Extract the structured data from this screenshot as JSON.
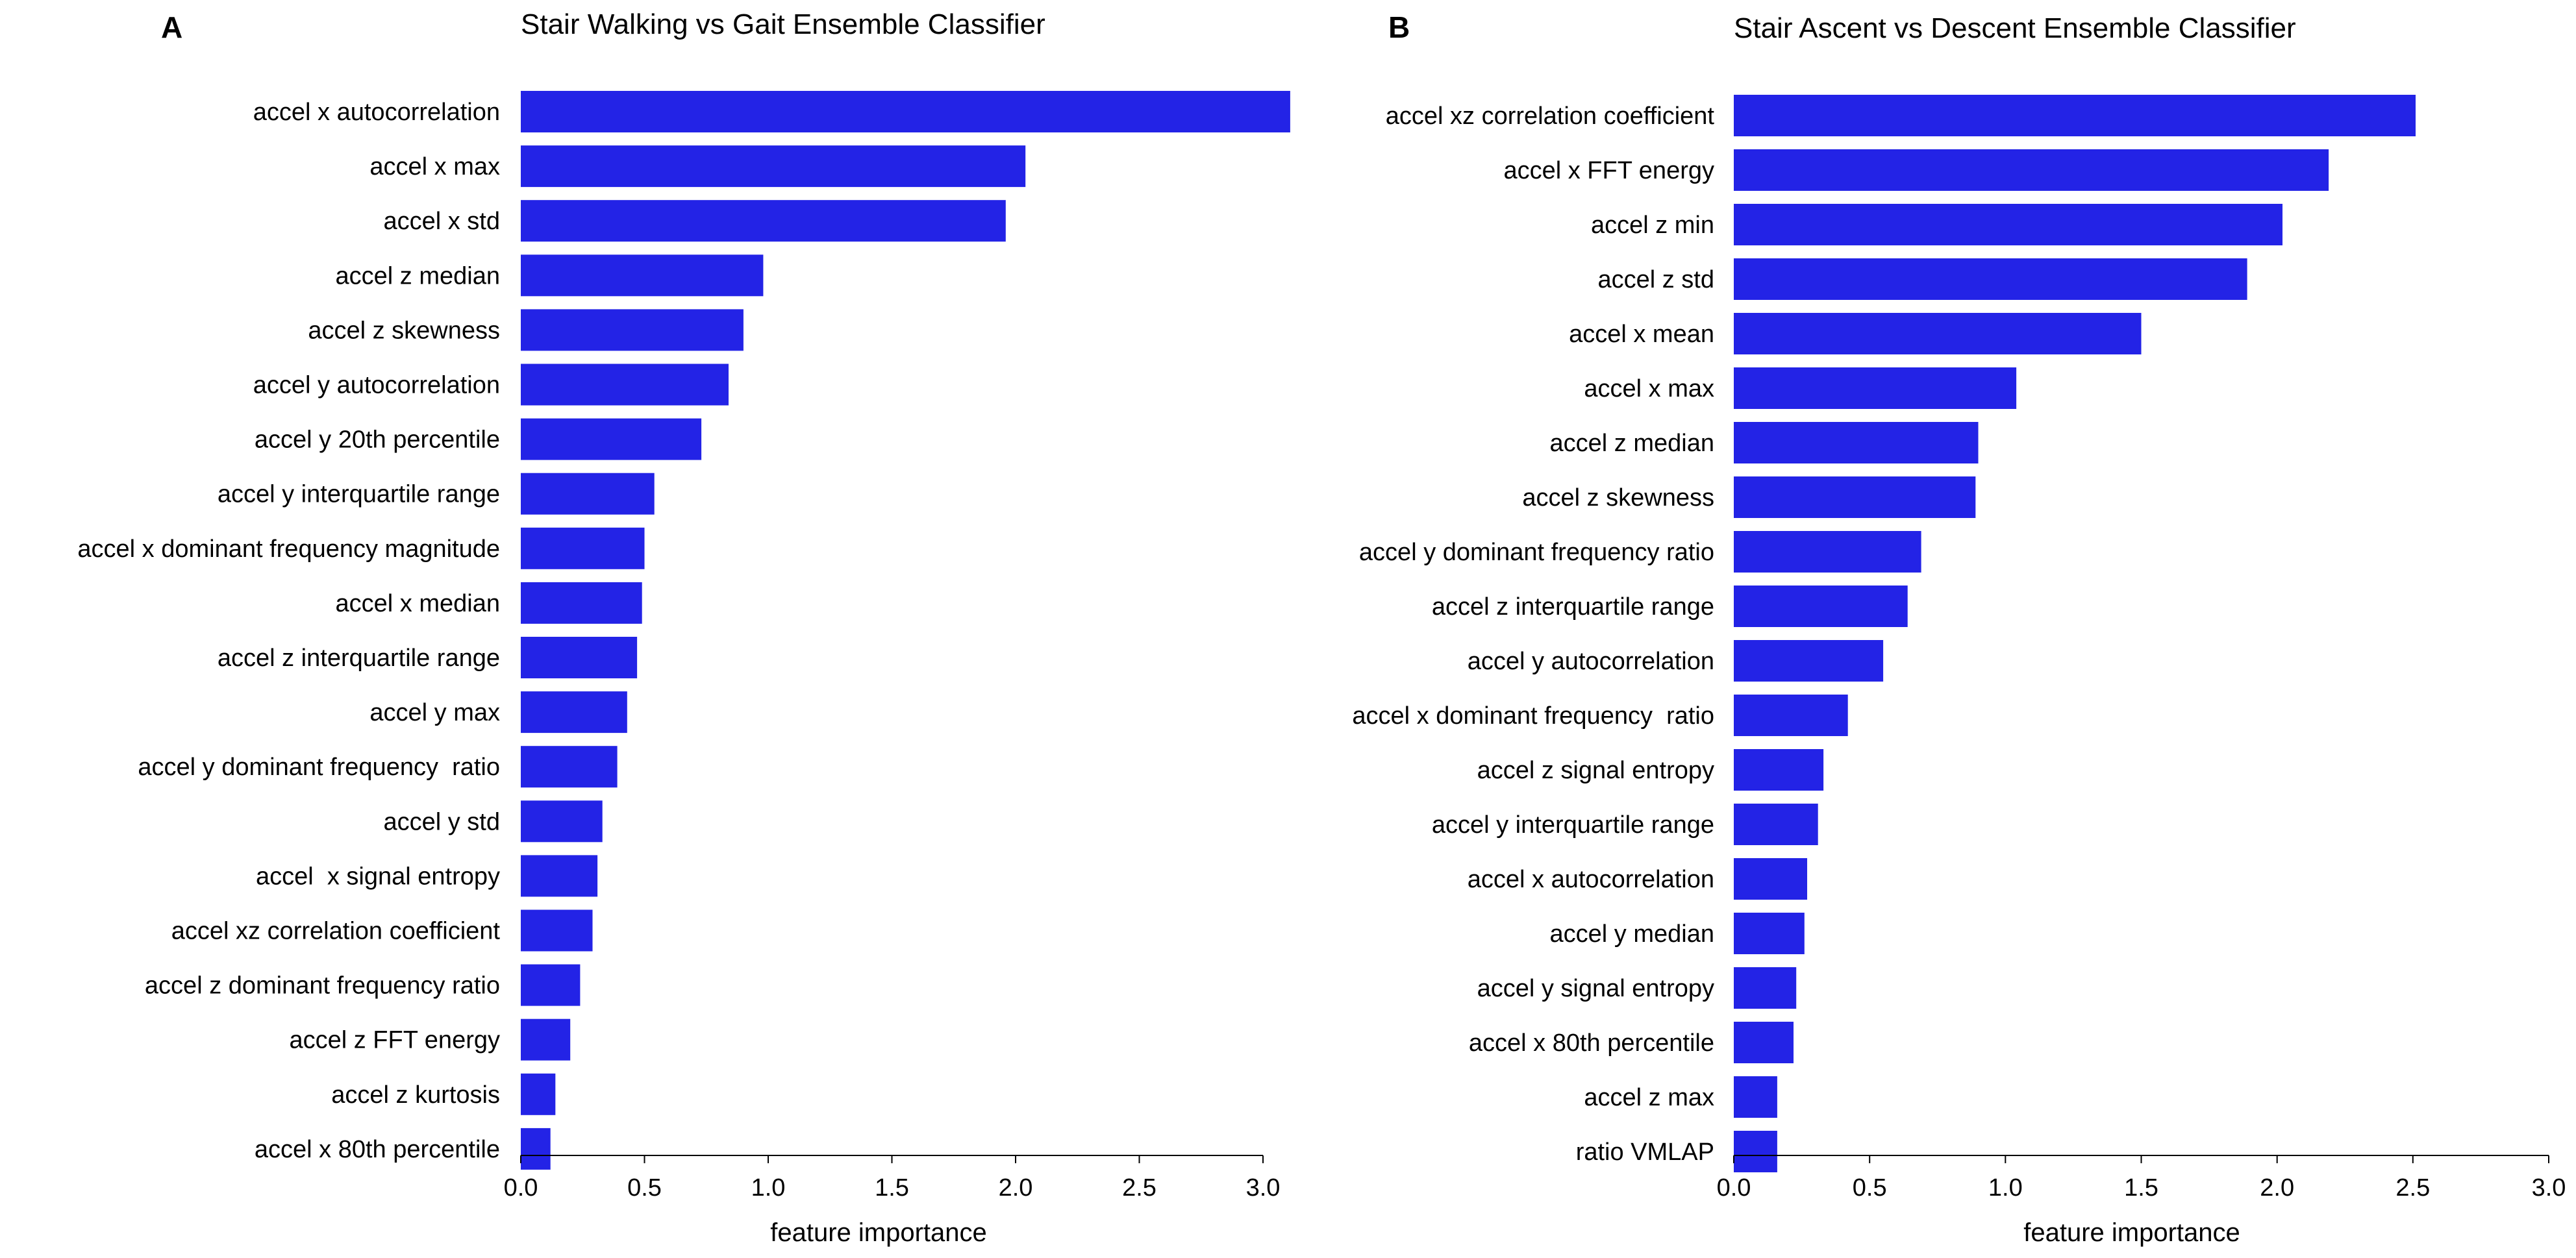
{
  "colors": {
    "bar": "#2323e6",
    "text": "#000000",
    "background": "#ffffff"
  },
  "chart_data": [
    {
      "type": "bar",
      "orientation": "horizontal",
      "panel": "A",
      "title": "Stair Walking vs Gait Ensemble Classifier",
      "xlabel": "feature importance",
      "ylabel": "",
      "xlim": [
        0,
        3.0
      ],
      "xticks": [
        "0.0",
        "0.5",
        "1.0",
        "1.5",
        "2.0",
        "2.5",
        "3.0"
      ],
      "categories": [
        "accel x autocorrelation",
        "accel x max",
        "accel x std",
        "accel z median",
        "accel z skewness",
        "accel y autocorrelation",
        "accel y 20th percentile",
        "accel y interquartile range",
        "accel x dominant frequency magnitude",
        "accel x median",
        "accel z interquartile range",
        "accel y max",
        "accel y dominant frequency  ratio",
        "accel y std",
        "accel  x signal entropy",
        "accel xz correlation coefficient",
        "accel z dominant frequency ratio",
        "accel z FFT energy",
        "accel z kurtosis",
        "accel x 80th percentile"
      ],
      "values": [
        3.11,
        2.04,
        1.96,
        0.98,
        0.9,
        0.84,
        0.73,
        0.54,
        0.5,
        0.49,
        0.47,
        0.43,
        0.39,
        0.33,
        0.31,
        0.29,
        0.24,
        0.2,
        0.14,
        0.12
      ]
    },
    {
      "type": "bar",
      "orientation": "horizontal",
      "panel": "B",
      "title": "Stair Ascent vs Descent Ensemble Classifier",
      "xlabel": "feature importance",
      "ylabel": "",
      "xlim": [
        0,
        3.0
      ],
      "xticks": [
        "0.0",
        "0.5",
        "1.0",
        "1.5",
        "2.0",
        "2.5",
        "3.0"
      ],
      "categories": [
        "accel xz correlation coefficient",
        "accel x FFT energy",
        "accel z min",
        "accel z std",
        "accel x mean",
        "accel x max",
        "accel z median",
        "accel z skewness",
        "accel y dominant frequency ratio",
        "accel z interquartile range",
        "accel y autocorrelation",
        "accel x dominant frequency  ratio",
        "accel z signal entropy",
        "accel y interquartile range",
        "accel x autocorrelation",
        "accel y median",
        "accel y signal entropy",
        "accel x 80th percentile",
        "accel z max",
        "ratio VMLAP"
      ],
      "values": [
        2.51,
        2.19,
        2.02,
        1.89,
        1.5,
        1.04,
        0.9,
        0.89,
        0.69,
        0.64,
        0.55,
        0.42,
        0.33,
        0.31,
        0.27,
        0.26,
        0.23,
        0.22,
        0.16,
        0.16
      ]
    }
  ]
}
